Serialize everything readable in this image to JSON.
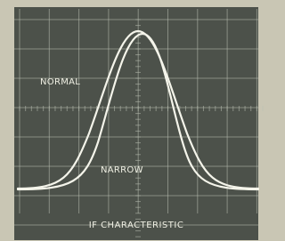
{
  "screen": {
    "trace_labels": {
      "normal": "NORMAL",
      "narrow": "NARROW"
    }
  },
  "caption": "IF CHARACTERISTIC"
}
